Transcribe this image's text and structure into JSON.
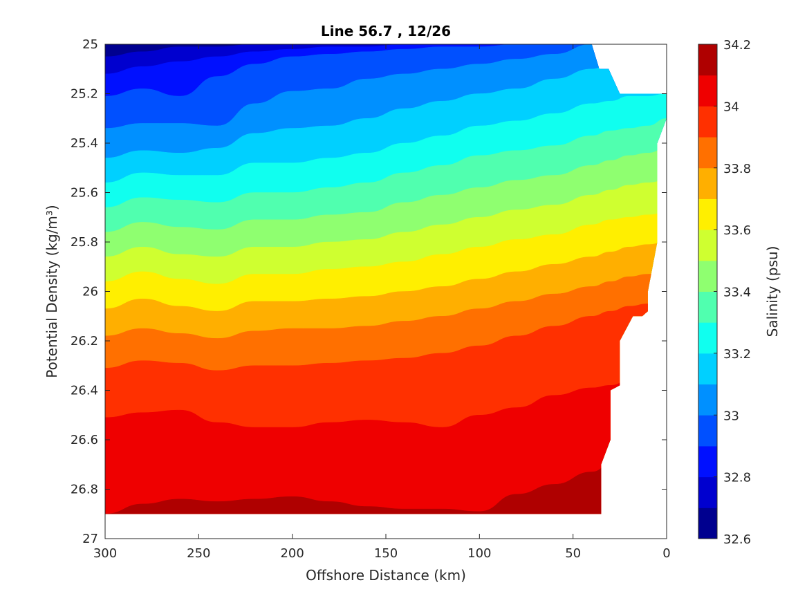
{
  "chart_data": {
    "type": "contourf",
    "title": "Line 56.7 , 12/26",
    "xlabel": "Offshore Distance (km)",
    "ylabel": "Potential Density (kg/m³)",
    "colorbar_label": "Salinity (psu)",
    "xlim": [
      300,
      0
    ],
    "ylim": [
      25,
      27
    ],
    "x_reversed": true,
    "y_reversed": true,
    "x_ticks": [
      300,
      250,
      200,
      150,
      100,
      50,
      0
    ],
    "y_ticks": [
      25,
      25.2,
      25.4,
      25.6,
      25.8,
      26,
      26.2,
      26.4,
      26.6,
      26.8,
      27
    ],
    "colorbar_ticks": [
      34.2,
      34,
      33.8,
      33.6,
      33.4,
      33.2,
      33,
      32.8,
      32.6
    ],
    "colorbar_range": [
      32.6,
      34.2
    ],
    "levels": [
      32.6,
      32.7,
      32.8,
      32.9,
      33.0,
      33.1,
      33.2,
      33.3,
      33.4,
      33.5,
      33.6,
      33.7,
      33.8,
      33.9,
      34.0,
      34.1,
      34.2
    ],
    "level_colors": [
      "#00008f",
      "#0000cf",
      "#0010ff",
      "#0050ff",
      "#0090ff",
      "#00d0ff",
      "#10ffef",
      "#50ffaf",
      "#8fff70",
      "#cfff30",
      "#ffef00",
      "#ffaf00",
      "#ff7000",
      "#ff3000",
      "#ef0000",
      "#af0000"
    ],
    "x": [
      300,
      280,
      260,
      240,
      220,
      200,
      180,
      160,
      140,
      120,
      100,
      80,
      60,
      40,
      30,
      20,
      10,
      0
    ],
    "band_boundaries": [
      {
        "value": 32.7,
        "density": [
          25.05,
          25.03,
          25.01,
          25.01,
          25.0,
          25.0,
          25.0,
          25.0,
          25.0,
          25.0,
          25.0,
          25.0,
          25.0,
          25.0,
          25.0,
          25.0,
          25.0,
          25.0
        ]
      },
      {
        "value": 32.8,
        "density": [
          25.12,
          25.09,
          25.07,
          25.05,
          25.03,
          25.02,
          25.01,
          25.01,
          25.0,
          25.0,
          25.0,
          25.0,
          25.0,
          25.0,
          25.0,
          25.0,
          25.0,
          25.0
        ]
      },
      {
        "value": 32.9,
        "density": [
          25.21,
          25.18,
          25.21,
          25.13,
          25.08,
          25.05,
          25.04,
          25.03,
          25.02,
          25.01,
          25.01,
          25.0,
          25.0,
          25.0,
          25.0,
          25.0,
          25.0,
          25.0
        ]
      },
      {
        "value": 33.0,
        "density": [
          25.34,
          25.32,
          25.32,
          25.33,
          25.24,
          25.19,
          25.18,
          25.14,
          25.12,
          25.1,
          25.08,
          25.06,
          25.04,
          25.0,
          25.0,
          25.0,
          25.0,
          25.0
        ]
      },
      {
        "value": 33.1,
        "density": [
          25.46,
          25.43,
          25.44,
          25.42,
          25.36,
          25.34,
          25.33,
          25.3,
          25.26,
          25.23,
          25.2,
          25.18,
          25.14,
          25.1,
          25.08,
          25.05,
          25.04,
          25.02
        ]
      },
      {
        "value": 33.2,
        "density": [
          25.56,
          25.52,
          25.53,
          25.53,
          25.48,
          25.48,
          25.46,
          25.44,
          25.4,
          25.37,
          25.33,
          25.31,
          25.28,
          25.24,
          25.23,
          25.21,
          25.21,
          25.2
        ]
      },
      {
        "value": 33.3,
        "density": [
          25.66,
          25.62,
          25.63,
          25.64,
          25.6,
          25.6,
          25.58,
          25.56,
          25.52,
          25.49,
          25.45,
          25.43,
          25.41,
          25.37,
          25.35,
          25.34,
          25.33,
          25.3
        ]
      },
      {
        "value": 33.4,
        "density": [
          25.76,
          25.72,
          25.74,
          25.75,
          25.71,
          25.71,
          25.69,
          25.68,
          25.64,
          25.61,
          25.58,
          25.55,
          25.53,
          25.49,
          25.47,
          25.45,
          25.44,
          25.42
        ]
      },
      {
        "value": 33.5,
        "density": [
          25.86,
          25.82,
          25.85,
          25.86,
          25.82,
          25.82,
          25.8,
          25.79,
          25.76,
          25.73,
          25.7,
          25.67,
          25.65,
          25.61,
          25.59,
          25.57,
          25.56,
          25.55
        ]
      },
      {
        "value": 33.6,
        "density": [
          25.96,
          25.92,
          25.95,
          25.97,
          25.93,
          25.93,
          25.91,
          25.9,
          25.88,
          25.85,
          25.82,
          25.79,
          25.77,
          25.73,
          25.71,
          25.7,
          25.69,
          25.68
        ]
      },
      {
        "value": 33.7,
        "density": [
          26.07,
          26.03,
          26.06,
          26.08,
          26.04,
          26.04,
          26.03,
          26.02,
          26.0,
          25.98,
          25.95,
          25.92,
          25.89,
          25.86,
          25.84,
          25.82,
          25.81,
          25.8
        ]
      },
      {
        "value": 33.8,
        "density": [
          26.18,
          26.15,
          26.17,
          26.19,
          26.16,
          26.15,
          26.15,
          26.14,
          26.12,
          26.1,
          26.07,
          26.04,
          26.01,
          25.98,
          25.96,
          25.94,
          25.93,
          25.92
        ]
      },
      {
        "value": 33.9,
        "density": [
          26.31,
          26.28,
          26.29,
          26.32,
          26.3,
          26.3,
          26.29,
          26.28,
          26.27,
          26.25,
          26.22,
          26.18,
          26.14,
          26.1,
          26.08,
          26.06,
          26.05,
          26.04
        ]
      },
      {
        "value": 34.0,
        "density": [
          26.51,
          26.49,
          26.48,
          26.53,
          26.55,
          26.55,
          26.53,
          26.52,
          26.53,
          26.55,
          26.5,
          26.47,
          26.42,
          26.39,
          26.38,
          26.36,
          26.35,
          26.34
        ]
      },
      {
        "value": 34.1,
        "density": [
          26.9,
          26.86,
          26.84,
          26.85,
          26.84,
          26.83,
          26.85,
          26.87,
          26.88,
          26.88,
          26.89,
          26.82,
          26.78,
          26.73,
          26.7,
          26.68,
          26.67,
          26.66
        ]
      }
    ],
    "data_coverage": {
      "top_edge": [
        [
          300,
          25.0
        ],
        [
          40,
          25.0
        ],
        [
          36,
          25.1
        ],
        [
          31,
          25.1
        ],
        [
          25,
          25.2
        ],
        [
          0,
          25.2
        ]
      ],
      "right_edge": [
        [
          0,
          25.2
        ],
        [
          0,
          25.3
        ],
        [
          5,
          25.4
        ],
        [
          5,
          25.8
        ],
        [
          10,
          26.0
        ],
        [
          10,
          26.08
        ],
        [
          13,
          26.1
        ],
        [
          18,
          26.1
        ],
        [
          25,
          26.2
        ],
        [
          25,
          26.38
        ],
        [
          30,
          26.4
        ],
        [
          30,
          26.6
        ],
        [
          35,
          26.7
        ],
        [
          35,
          26.9
        ]
      ],
      "bottom_edge": [
        [
          35,
          26.9
        ],
        [
          300,
          26.9
        ]
      ]
    }
  }
}
